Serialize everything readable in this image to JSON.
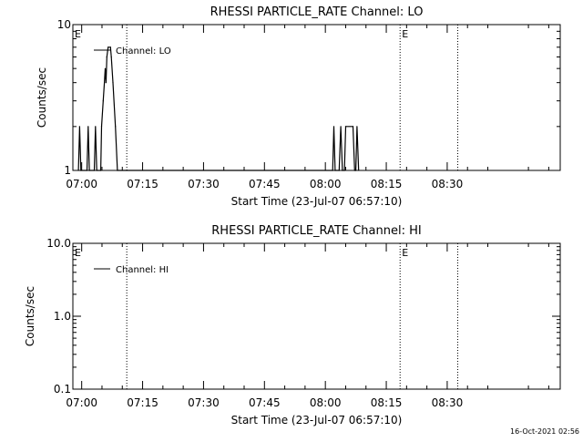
{
  "footer": {
    "timestamp": "16-Oct-2021 02:56"
  },
  "chart_data": [
    {
      "type": "line",
      "title": "RHESSI PARTICLE_RATE Channel: LO",
      "xlabel": "Start Time (23-Jul-07 06:57:10)",
      "ylabel": "Counts/sec",
      "yscale": "log",
      "ylim": [
        1,
        10
      ],
      "xlim_minutes": [
        -2.17,
        117.83
      ],
      "x_ticks": [
        {
          "min": 0,
          "label": "07:00"
        },
        {
          "min": 15,
          "label": "07:15"
        },
        {
          "min": 30,
          "label": "07:30"
        },
        {
          "min": 45,
          "label": "07:45"
        },
        {
          "min": 60,
          "label": "08:00"
        },
        {
          "min": 75,
          "label": "08:15"
        },
        {
          "min": 90,
          "label": "08:30"
        }
      ],
      "y_ticks": [
        {
          "value": 1,
          "label": "1"
        },
        {
          "value": 10,
          "label": "10"
        }
      ],
      "event_lines_minutes": [
        11.1,
        78.4,
        92.6
      ],
      "event_markers": [
        {
          "min": -2.17,
          "label": "E"
        },
        {
          "min": 78.4,
          "label": "E"
        }
      ],
      "legend": "top-left",
      "series": [
        {
          "name": "Channel: LO",
          "points": [
            [
              -0.8,
              1
            ],
            [
              -0.5,
              2
            ],
            [
              -0.2,
              1
            ],
            [
              1.3,
              1
            ],
            [
              1.6,
              2
            ],
            [
              1.9,
              1
            ],
            [
              3.1,
              1
            ],
            [
              3.4,
              2
            ],
            [
              3.7,
              1
            ],
            [
              4.7,
              1
            ],
            [
              4.9,
              2
            ],
            [
              5.3,
              3
            ],
            [
              5.6,
              4
            ],
            [
              5.8,
              5
            ],
            [
              6.0,
              4
            ],
            [
              6.2,
              6
            ],
            [
              6.5,
              7
            ],
            [
              7.1,
              7
            ],
            [
              7.3,
              6
            ],
            [
              7.7,
              4
            ],
            [
              8.3,
              2
            ],
            [
              8.8,
              1
            ],
            [
              61.8,
              1
            ],
            [
              62.1,
              2
            ],
            [
              62.4,
              1
            ],
            [
              63.4,
              1
            ],
            [
              63.8,
              2
            ],
            [
              64.2,
              1
            ],
            [
              64.7,
              1
            ],
            [
              65.0,
              2
            ],
            [
              66.8,
              2
            ],
            [
              67.2,
              1
            ],
            [
              67.5,
              1
            ],
            [
              67.8,
              2
            ],
            [
              68.2,
              1
            ]
          ]
        }
      ]
    },
    {
      "type": "line",
      "title": "RHESSI PARTICLE_RATE Channel: HI",
      "xlabel": "Start Time (23-Jul-07 06:57:10)",
      "ylabel": "Counts/sec",
      "yscale": "log",
      "ylim": [
        0.1,
        10
      ],
      "xlim_minutes": [
        -2.17,
        117.83
      ],
      "x_ticks": [
        {
          "min": 0,
          "label": "07:00"
        },
        {
          "min": 15,
          "label": "07:15"
        },
        {
          "min": 30,
          "label": "07:30"
        },
        {
          "min": 45,
          "label": "07:45"
        },
        {
          "min": 60,
          "label": "08:00"
        },
        {
          "min": 75,
          "label": "08:15"
        },
        {
          "min": 90,
          "label": "08:30"
        }
      ],
      "y_ticks": [
        {
          "value": 0.1,
          "label": "0.1"
        },
        {
          "value": 1,
          "label": "1.0"
        },
        {
          "value": 10,
          "label": "10.0"
        }
      ],
      "event_lines_minutes": [
        11.1,
        78.4,
        92.6
      ],
      "event_markers": [
        {
          "min": -2.17,
          "label": "E"
        },
        {
          "min": 78.4,
          "label": "E"
        }
      ],
      "legend": "top-left",
      "series": [
        {
          "name": "Channel: HI",
          "points": []
        }
      ]
    }
  ]
}
